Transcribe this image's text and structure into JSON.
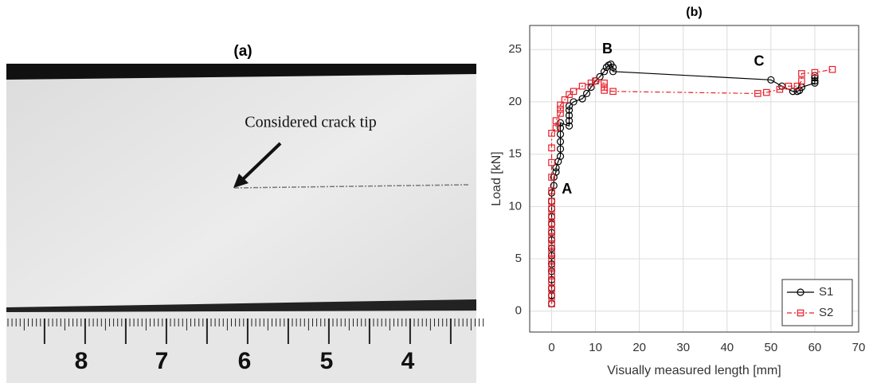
{
  "panel_a": {
    "title": "(a)",
    "annotation": "Considered crack tip",
    "ruler_labels": [
      "8",
      "7",
      "6",
      "5",
      "4"
    ]
  },
  "chart_data": {
    "type": "line",
    "title": "(b)",
    "xlabel": "Visually measured length [mm]",
    "ylabel": "Load [kN]",
    "xlim": [
      -5,
      70
    ],
    "ylim": [
      -2,
      27.3
    ],
    "xticks": [
      0,
      10,
      20,
      30,
      40,
      50,
      60,
      70
    ],
    "yticks": [
      0,
      5,
      10,
      15,
      20,
      25
    ],
    "grid": true,
    "legend": "lower right",
    "annotations": [
      {
        "text": "A",
        "x": 3.5,
        "y": 11.6
      },
      {
        "text": "B",
        "x": 12.7,
        "y": 25
      },
      {
        "text": "C",
        "x": 47.3,
        "y": 23.8
      }
    ],
    "series": [
      {
        "name": "S1",
        "color": "#000000",
        "marker": "circle",
        "dash": "solid",
        "x": [
          0,
          0,
          0,
          0,
          0,
          0,
          0,
          0,
          0,
          0,
          0,
          0,
          0,
          0,
          0,
          0.5,
          0.5,
          1,
          1,
          1.5,
          2,
          2,
          2,
          2,
          2,
          2,
          4,
          4,
          4,
          4,
          4,
          5,
          7,
          8,
          9,
          10,
          11,
          12,
          12.5,
          13,
          13.5,
          14,
          14,
          50,
          52.5,
          55,
          56,
          56.5,
          57,
          60,
          60,
          60,
          60
        ],
        "values": [
          0.7,
          1.5,
          2.2,
          3,
          3.8,
          4.5,
          5.3,
          6,
          6.8,
          7.5,
          8.3,
          9,
          9.8,
          10.5,
          11.3,
          12,
          12.8,
          13.3,
          13.7,
          14.3,
          14.8,
          15.5,
          16.2,
          16.9,
          17.5,
          18,
          17.7,
          18.2,
          18.7,
          19.2,
          19.6,
          20,
          20.3,
          20.8,
          21.4,
          22,
          22.4,
          22.9,
          23.3,
          23.5,
          23.6,
          23.3,
          22.9,
          22.1,
          21.5,
          21,
          21,
          21.1,
          21.4,
          21.8,
          22,
          22.3,
          22.5
        ]
      },
      {
        "name": "S2",
        "color": "#e8202a",
        "marker": "square",
        "dash": "dashdot",
        "x": [
          0,
          0,
          0,
          0,
          0,
          0,
          0,
          0,
          0,
          0,
          0,
          0,
          0,
          0,
          0,
          0,
          0,
          0,
          0,
          0,
          1,
          1,
          2,
          2,
          2,
          3,
          4,
          5,
          7,
          9,
          10,
          12,
          12,
          12,
          14,
          47,
          49,
          52,
          54,
          56,
          57,
          57,
          60,
          64
        ],
        "values": [
          0.7,
          1.4,
          2.1,
          2.8,
          3.5,
          4.2,
          4.9,
          5.6,
          6.3,
          7,
          7.7,
          8.4,
          9.1,
          9.8,
          10.5,
          11.5,
          12.8,
          14.2,
          15.6,
          17,
          17.5,
          18.2,
          18.9,
          19.3,
          19.7,
          20.2,
          20.7,
          21,
          21.5,
          21.8,
          22,
          21.8,
          21.4,
          21.1,
          21,
          20.8,
          20.9,
          21.2,
          21.5,
          21.5,
          22,
          22.7,
          22.8,
          23.1
        ]
      }
    ]
  }
}
